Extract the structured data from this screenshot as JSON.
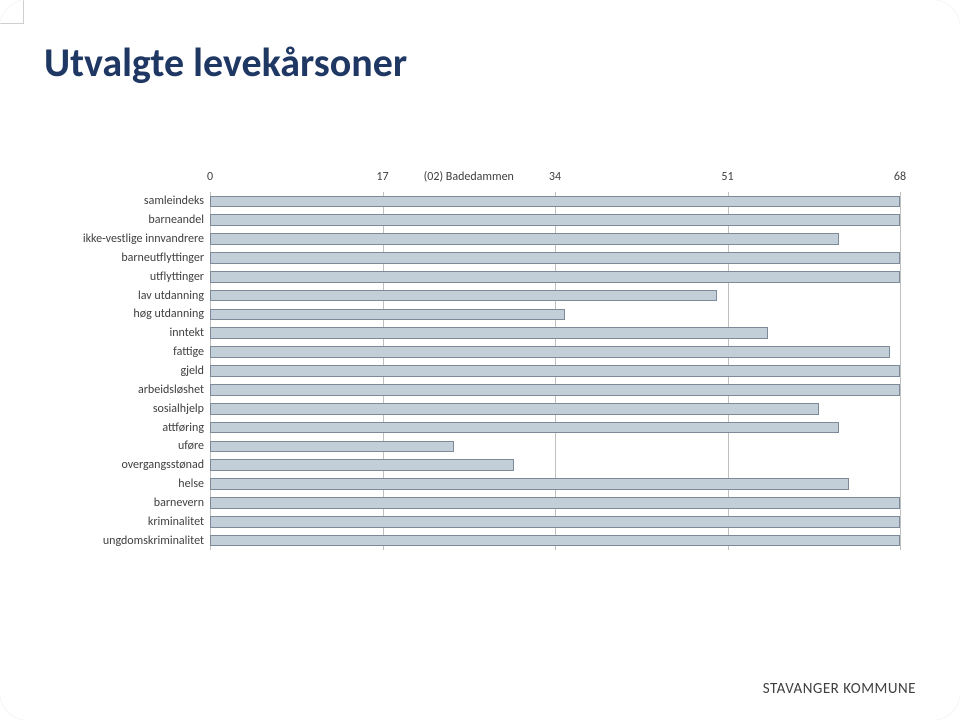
{
  "title": "Utvalgte levekårsoner",
  "title_style": "color:#1f3763;font-size:40px;font-weight:bold;",
  "footer": {
    "text": "STAVANGER KOMMUNE",
    "style": "color:#404040;font-size:15px;letter-spacing:0.5px;"
  },
  "chart": {
    "type": "bar-horizontal",
    "series_title": "(02) Badedammen",
    "x_ticks": [
      0,
      17,
      34,
      51,
      68
    ],
    "x_min": 0,
    "x_max": 68,
    "axis_font_size": 12,
    "axis_color": "#404040",
    "label_font_size": 12,
    "label_color": "#404040",
    "grid_color": "#bfbfbf",
    "bar_color": "#c2ced8",
    "bar_border_color": "#7d8a99",
    "background_color": "#ffffff",
    "categories": [
      "samleindeks",
      "barneandel",
      "ikke-vestlige innvandrere",
      "barneutflyttinger",
      "utflyttinger",
      "lav utdanning",
      "høg utdanning",
      "inntekt",
      "fattige",
      "gjeld",
      "arbeidsløshet",
      "sosialhjelp",
      "attføring",
      "uføre",
      "overgangsstønad",
      "helse",
      "barnevern",
      "kriminalitet",
      "ungdomskriminalitet"
    ],
    "values": [
      68,
      68,
      62,
      68,
      68,
      50,
      35,
      55,
      67,
      68,
      68,
      60,
      62,
      24,
      30,
      63,
      68,
      68,
      68
    ]
  }
}
